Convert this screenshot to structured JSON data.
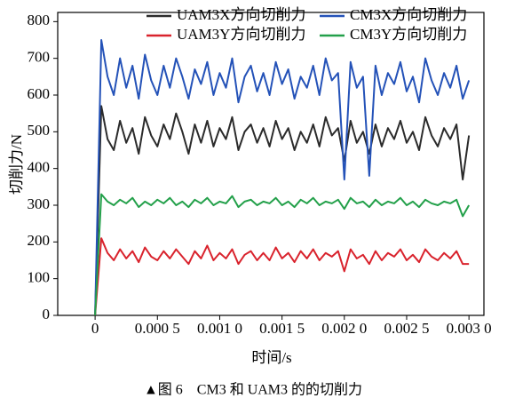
{
  "chart_data": {
    "type": "line",
    "x_label": "时间/s",
    "y_label": "切削力/N",
    "caption": "▲图 6　CM3 和 UAM3 的的切削力",
    "x": [
      0,
      5e-05,
      0.0001,
      0.00015,
      0.0002,
      0.00025,
      0.0003,
      0.00035,
      0.0004,
      0.00045,
      0.0005,
      0.00055,
      0.0006,
      0.00065,
      0.0007,
      0.00075,
      0.0008,
      0.00085,
      0.0009,
      0.00095,
      0.001,
      0.00105,
      0.0011,
      0.00115,
      0.0012,
      0.00125,
      0.0013,
      0.00135,
      0.0014,
      0.00145,
      0.0015,
      0.00155,
      0.0016,
      0.00165,
      0.0017,
      0.00175,
      0.0018,
      0.00185,
      0.0019,
      0.00195,
      0.002,
      0.00205,
      0.0021,
      0.00215,
      0.0022,
      0.00225,
      0.0023,
      0.00235,
      0.0024,
      0.00245,
      0.0025,
      0.00255,
      0.0026,
      0.00265,
      0.0027,
      0.00275,
      0.0028,
      0.00285,
      0.0029,
      0.00295,
      0.003
    ],
    "series": [
      {
        "name": "UAM3X方向切削力",
        "color": "#2b2b2b",
        "values": [
          0,
          570,
          480,
          450,
          530,
          470,
          510,
          440,
          540,
          490,
          460,
          520,
          480,
          550,
          500,
          440,
          520,
          470,
          530,
          460,
          510,
          480,
          540,
          450,
          500,
          520,
          470,
          510,
          460,
          530,
          480,
          510,
          450,
          500,
          470,
          520,
          460,
          540,
          490,
          510,
          420,
          530,
          470,
          500,
          440,
          520,
          460,
          510,
          480,
          530,
          470,
          500,
          450,
          540,
          490,
          460,
          510,
          480,
          520,
          370,
          490
        ]
      },
      {
        "name": "CM3X方向切削力",
        "color": "#2452b8",
        "values": [
          0,
          750,
          650,
          600,
          700,
          620,
          680,
          590,
          710,
          640,
          600,
          680,
          620,
          700,
          650,
          590,
          670,
          630,
          690,
          600,
          660,
          620,
          700,
          580,
          650,
          680,
          610,
          660,
          600,
          690,
          630,
          670,
          590,
          650,
          620,
          680,
          600,
          700,
          640,
          660,
          370,
          690,
          620,
          650,
          380,
          680,
          600,
          660,
          630,
          690,
          610,
          650,
          580,
          700,
          640,
          600,
          660,
          620,
          680,
          590,
          640
        ]
      },
      {
        "name": "UAM3Y方向切削力",
        "color": "#d9232d",
        "values": [
          0,
          210,
          170,
          150,
          180,
          155,
          175,
          145,
          185,
          160,
          150,
          175,
          155,
          180,
          160,
          140,
          175,
          155,
          190,
          150,
          170,
          155,
          180,
          140,
          165,
          175,
          150,
          170,
          150,
          185,
          155,
          170,
          145,
          175,
          155,
          180,
          150,
          170,
          160,
          175,
          120,
          180,
          155,
          165,
          140,
          175,
          150,
          170,
          160,
          180,
          150,
          165,
          145,
          180,
          160,
          150,
          170,
          155,
          175,
          140,
          140
        ]
      },
      {
        "name": "CM3Y方向切削力",
        "color": "#23a04a",
        "values": [
          0,
          330,
          310,
          300,
          315,
          305,
          320,
          295,
          310,
          300,
          315,
          305,
          320,
          300,
          310,
          295,
          315,
          305,
          320,
          300,
          310,
          305,
          325,
          295,
          310,
          315,
          300,
          310,
          305,
          320,
          300,
          310,
          295,
          315,
          305,
          320,
          300,
          310,
          305,
          315,
          290,
          320,
          305,
          310,
          295,
          315,
          300,
          310,
          305,
          320,
          300,
          310,
          295,
          315,
          305,
          300,
          310,
          305,
          315,
          270,
          300
        ]
      }
    ],
    "xlim": [
      -0.0003,
      0.00312
    ],
    "ylim": [
      0,
      825
    ],
    "xticks": [
      {
        "value": 0,
        "label": "0"
      },
      {
        "value": 0.0005,
        "label": "0.000 5"
      },
      {
        "value": 0.001,
        "label": "0.001 0"
      },
      {
        "value": 0.0015,
        "label": "0.001 5"
      },
      {
        "value": 0.002,
        "label": "0.002 0"
      },
      {
        "value": 0.0025,
        "label": "0.002 5"
      },
      {
        "value": 0.003,
        "label": "0.003 0"
      }
    ],
    "yticks": [
      0,
      100,
      200,
      300,
      400,
      500,
      600,
      700,
      800
    ]
  }
}
